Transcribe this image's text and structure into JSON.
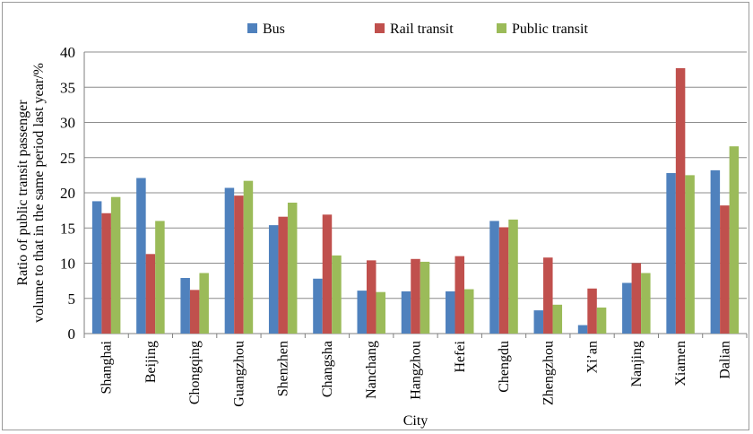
{
  "chart_data": {
    "type": "bar",
    "title": "",
    "xlabel": "City",
    "ylabel_lines": [
      "Ratio of public transit passenger",
      "volume to that in the same period last year/%"
    ],
    "ylim": [
      0,
      40
    ],
    "yticks": [
      0,
      5,
      10,
      15,
      20,
      25,
      30,
      35,
      40
    ],
    "grid": true,
    "legend_position": "top",
    "categories": [
      "Shanghai",
      "Beijing",
      "Chongqing",
      "Guangzhou",
      "Shenzhen",
      "Changsha",
      "Nanchang",
      "Hangzhou",
      "Hefei",
      "Chengdu",
      "Zhengzhou",
      "Xi’an",
      "Nanjing",
      "Xiamen",
      "Dalian"
    ],
    "series": [
      {
        "name": "Bus",
        "color": "#4f81bd",
        "values": [
          18.8,
          22.1,
          7.9,
          20.7,
          15.4,
          7.8,
          6.1,
          6.0,
          6.0,
          16.0,
          3.3,
          1.2,
          7.2,
          22.8,
          23.2
        ]
      },
      {
        "name": "Rail transit",
        "color": "#c0504d",
        "values": [
          17.1,
          11.3,
          6.2,
          19.6,
          16.6,
          16.9,
          10.4,
          10.6,
          11.0,
          15.1,
          10.8,
          6.4,
          10.0,
          37.7,
          18.2
        ]
      },
      {
        "name": "Public transit",
        "color": "#9bbb59",
        "values": [
          19.4,
          16.0,
          8.6,
          21.7,
          18.6,
          11.1,
          5.9,
          10.2,
          6.3,
          16.2,
          4.1,
          3.7,
          8.6,
          22.5,
          26.6
        ]
      }
    ]
  }
}
